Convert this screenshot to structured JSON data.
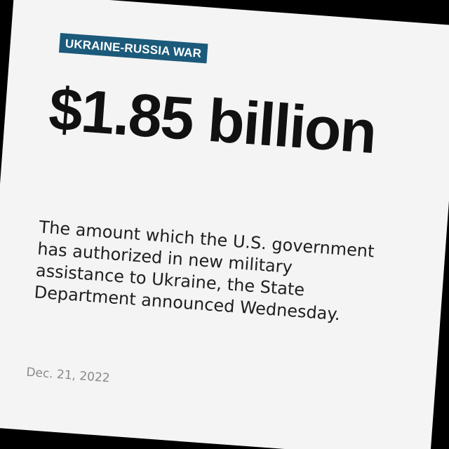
{
  "card": {
    "tag": "UKRAINE-RUSSIA WAR",
    "headline": "$1.85 billion",
    "body": "The amount which the U.S. government has authorized in new military assistance to Ukraine, the State Department announced Wednesday.",
    "date": "Dec. 21, 2022"
  },
  "colors": {
    "tag_background": "#1b5a7a",
    "card_background": "#f4f4f4",
    "page_background": "#000000"
  }
}
